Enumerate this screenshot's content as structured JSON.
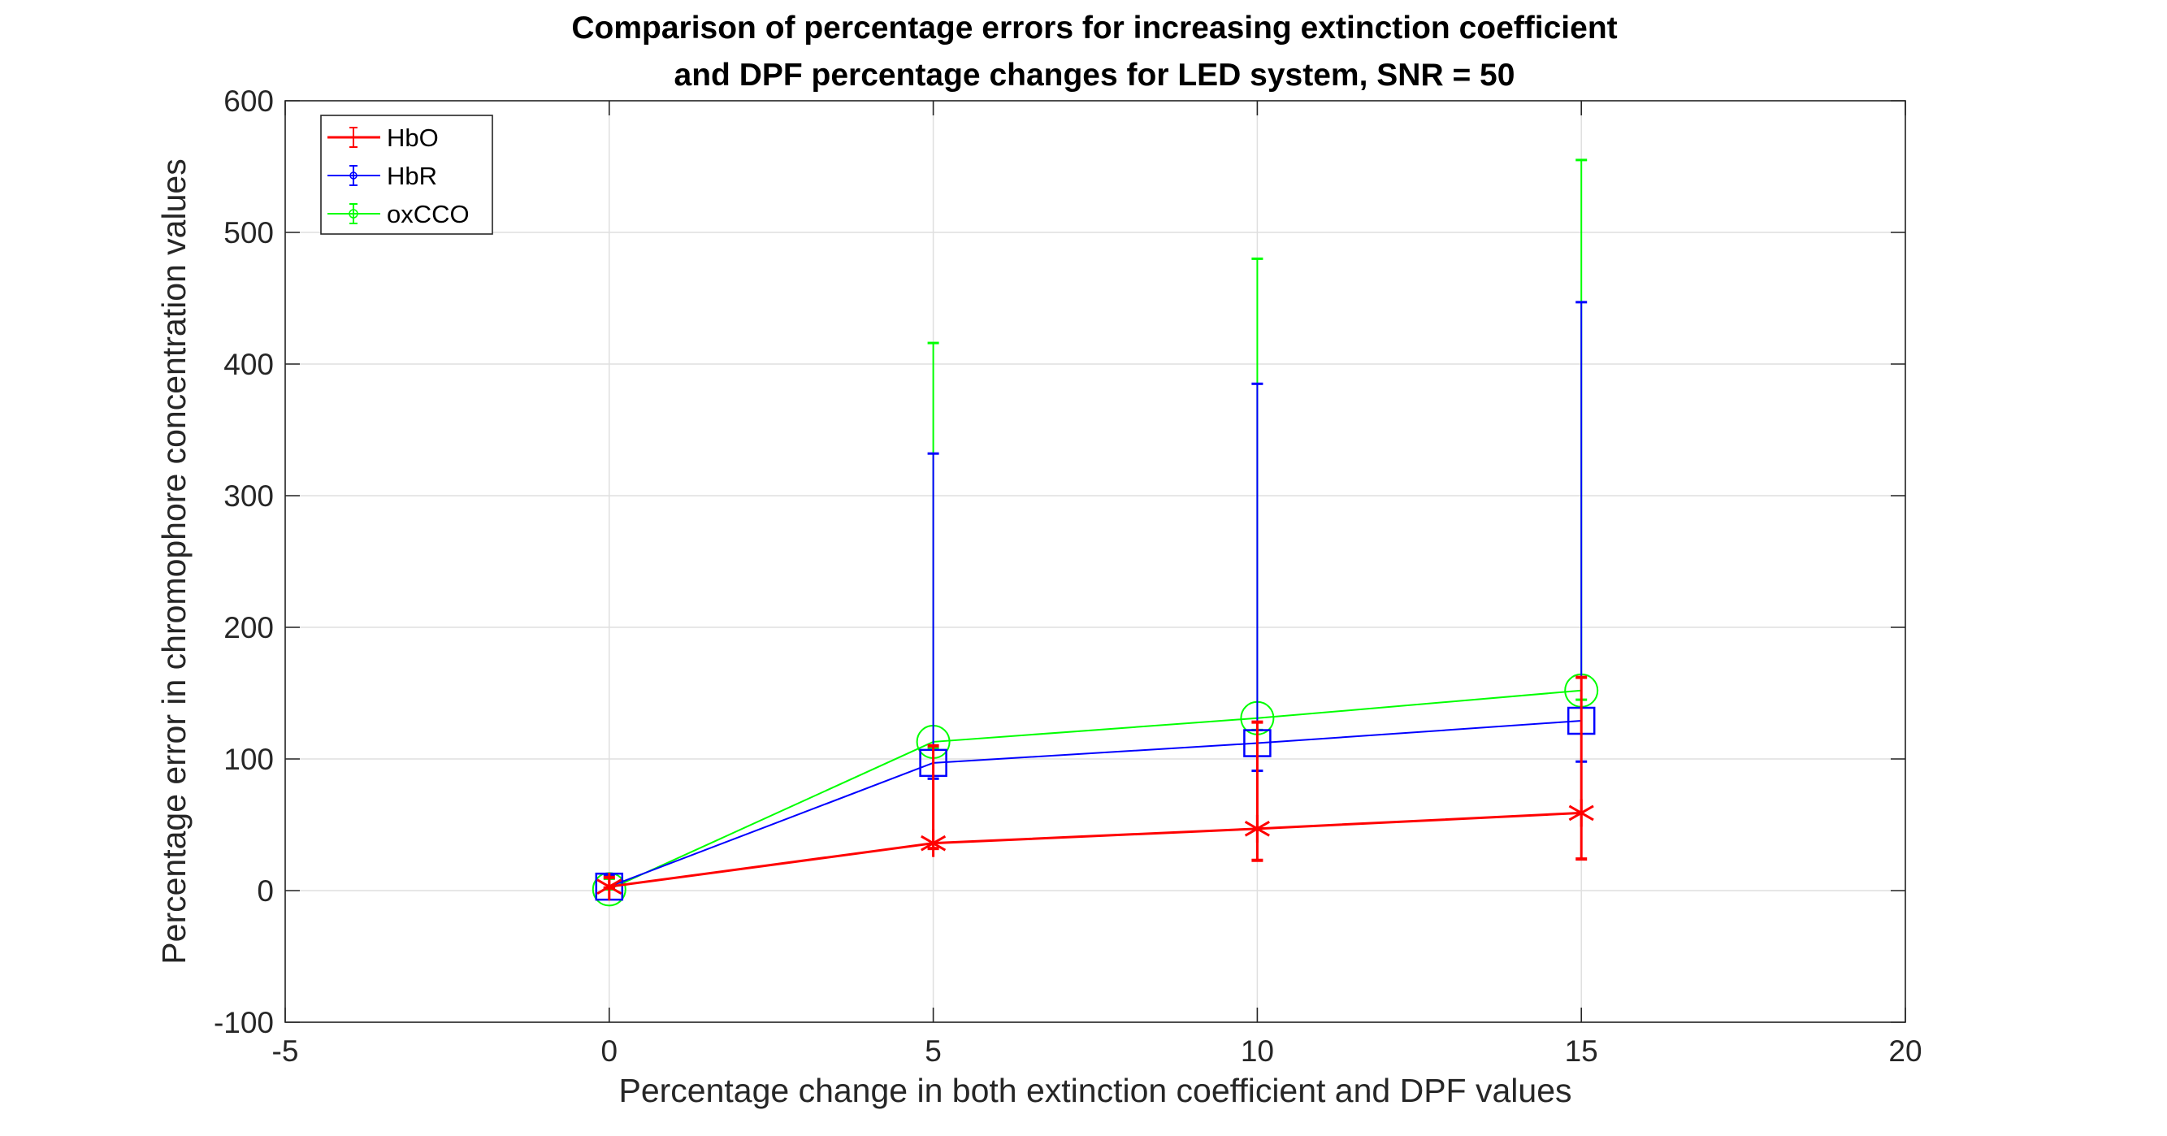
{
  "chart_data": {
    "type": "line",
    "title": [
      "Comparison of percentage errors for increasing extinction coefficient",
      "and DPF percentage changes for LED system, SNR = 50"
    ],
    "xlabel": "Percentage change in both extinction coefficient and DPF values",
    "ylabel": "Percentage error in chromophore concentration values",
    "xlim": [
      -5,
      20
    ],
    "ylim": [
      -100,
      600
    ],
    "xticks": [
      -5,
      0,
      5,
      10,
      15,
      20
    ],
    "yticks": [
      -100,
      0,
      100,
      200,
      300,
      400,
      500,
      600
    ],
    "grid": true,
    "legend_position": "top-left",
    "x": [
      0,
      5,
      10,
      15
    ],
    "series": [
      {
        "name": "HbO",
        "color": "#ff0000",
        "marker": "star",
        "values": [
          3,
          36,
          47,
          59
        ],
        "err_low": [
          2,
          32,
          23,
          24
        ],
        "err_high": [
          10,
          110,
          128,
          162
        ]
      },
      {
        "name": "HbR",
        "color": "#0000ff",
        "marker": "square",
        "values": [
          3,
          97,
          112,
          129
        ],
        "err_low": [
          2,
          85,
          91,
          98
        ],
        "err_high": [
          12,
          332,
          385,
          447
        ]
      },
      {
        "name": "oxCCO",
        "color": "#00ff00",
        "marker": "circle",
        "values": [
          1,
          113,
          131,
          152
        ],
        "err_low": [
          1,
          108,
          122,
          145
        ],
        "err_high": [
          9,
          416,
          480,
          555
        ]
      }
    ]
  }
}
